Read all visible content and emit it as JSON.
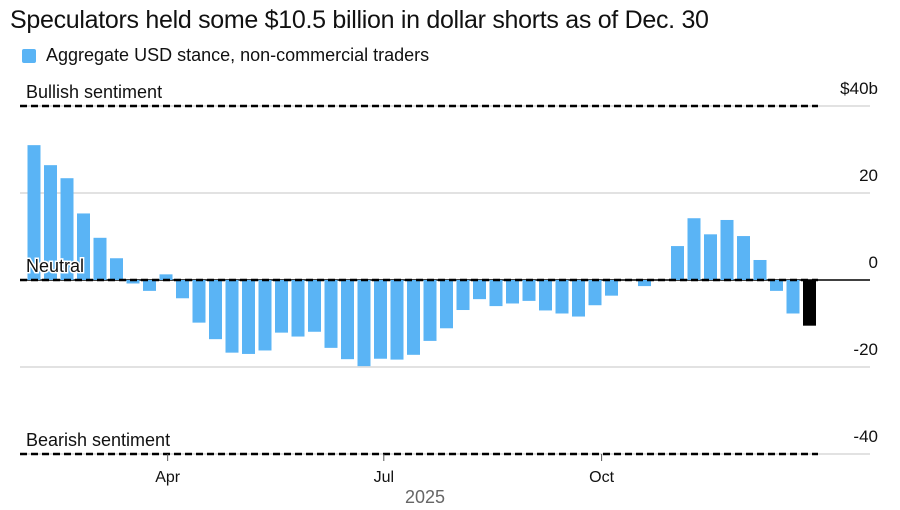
{
  "title": "Speculators held some $10.5 billion in dollar shorts as of Dec. 30",
  "legend": {
    "label": "Aggregate USD stance, non-commercial traders",
    "color": "#5ab4f5"
  },
  "colors": {
    "bar": "#5ab4f5",
    "latest_bar": "#000000",
    "grid": "#d0d0d0"
  },
  "chart_data": {
    "type": "bar",
    "title": "Speculators held some $10.5 billion in dollar shorts as of Dec. 30",
    "xlabel": "2025",
    "ylabel": "",
    "ylim": [
      -40,
      40
    ],
    "y_ticks": [
      {
        "value": 40,
        "label": "$40b"
      },
      {
        "value": 20,
        "label": "20"
      },
      {
        "value": 0,
        "label": "0"
      },
      {
        "value": -20,
        "label": "-20"
      },
      {
        "value": -40,
        "label": "-40"
      }
    ],
    "x_ticks": [
      {
        "slot": 8.1,
        "label": "Apr"
      },
      {
        "slot": 21.2,
        "label": "Jul"
      },
      {
        "slot": 34.4,
        "label": "Oct"
      }
    ],
    "reference_lines": [
      {
        "value": 40,
        "label": "Bullish sentiment"
      },
      {
        "value": 0,
        "label": "Neutral"
      },
      {
        "value": -40,
        "label": "Bearish sentiment"
      }
    ],
    "values": [
      31.0,
      26.4,
      23.4,
      15.3,
      9.7,
      5.0,
      -0.8,
      -2.5,
      1.3,
      -4.2,
      -9.8,
      -13.6,
      -16.7,
      -17.0,
      -16.2,
      -12.1,
      -13.0,
      -11.9,
      -15.6,
      -18.2,
      -19.8,
      -18.1,
      -18.3,
      -17.2,
      -14.0,
      -11.1,
      -6.9,
      -4.4,
      -6.0,
      -5.4,
      -4.8,
      -7.0,
      -7.7,
      -8.4,
      -5.8,
      -3.6,
      null,
      -1.4,
      null,
      7.8,
      14.2,
      10.5,
      13.8,
      10.1,
      4.6,
      -2.5,
      -7.7,
      -10.5
    ],
    "highlight_last": true,
    "grid": true,
    "legend_position": "top-left"
  }
}
